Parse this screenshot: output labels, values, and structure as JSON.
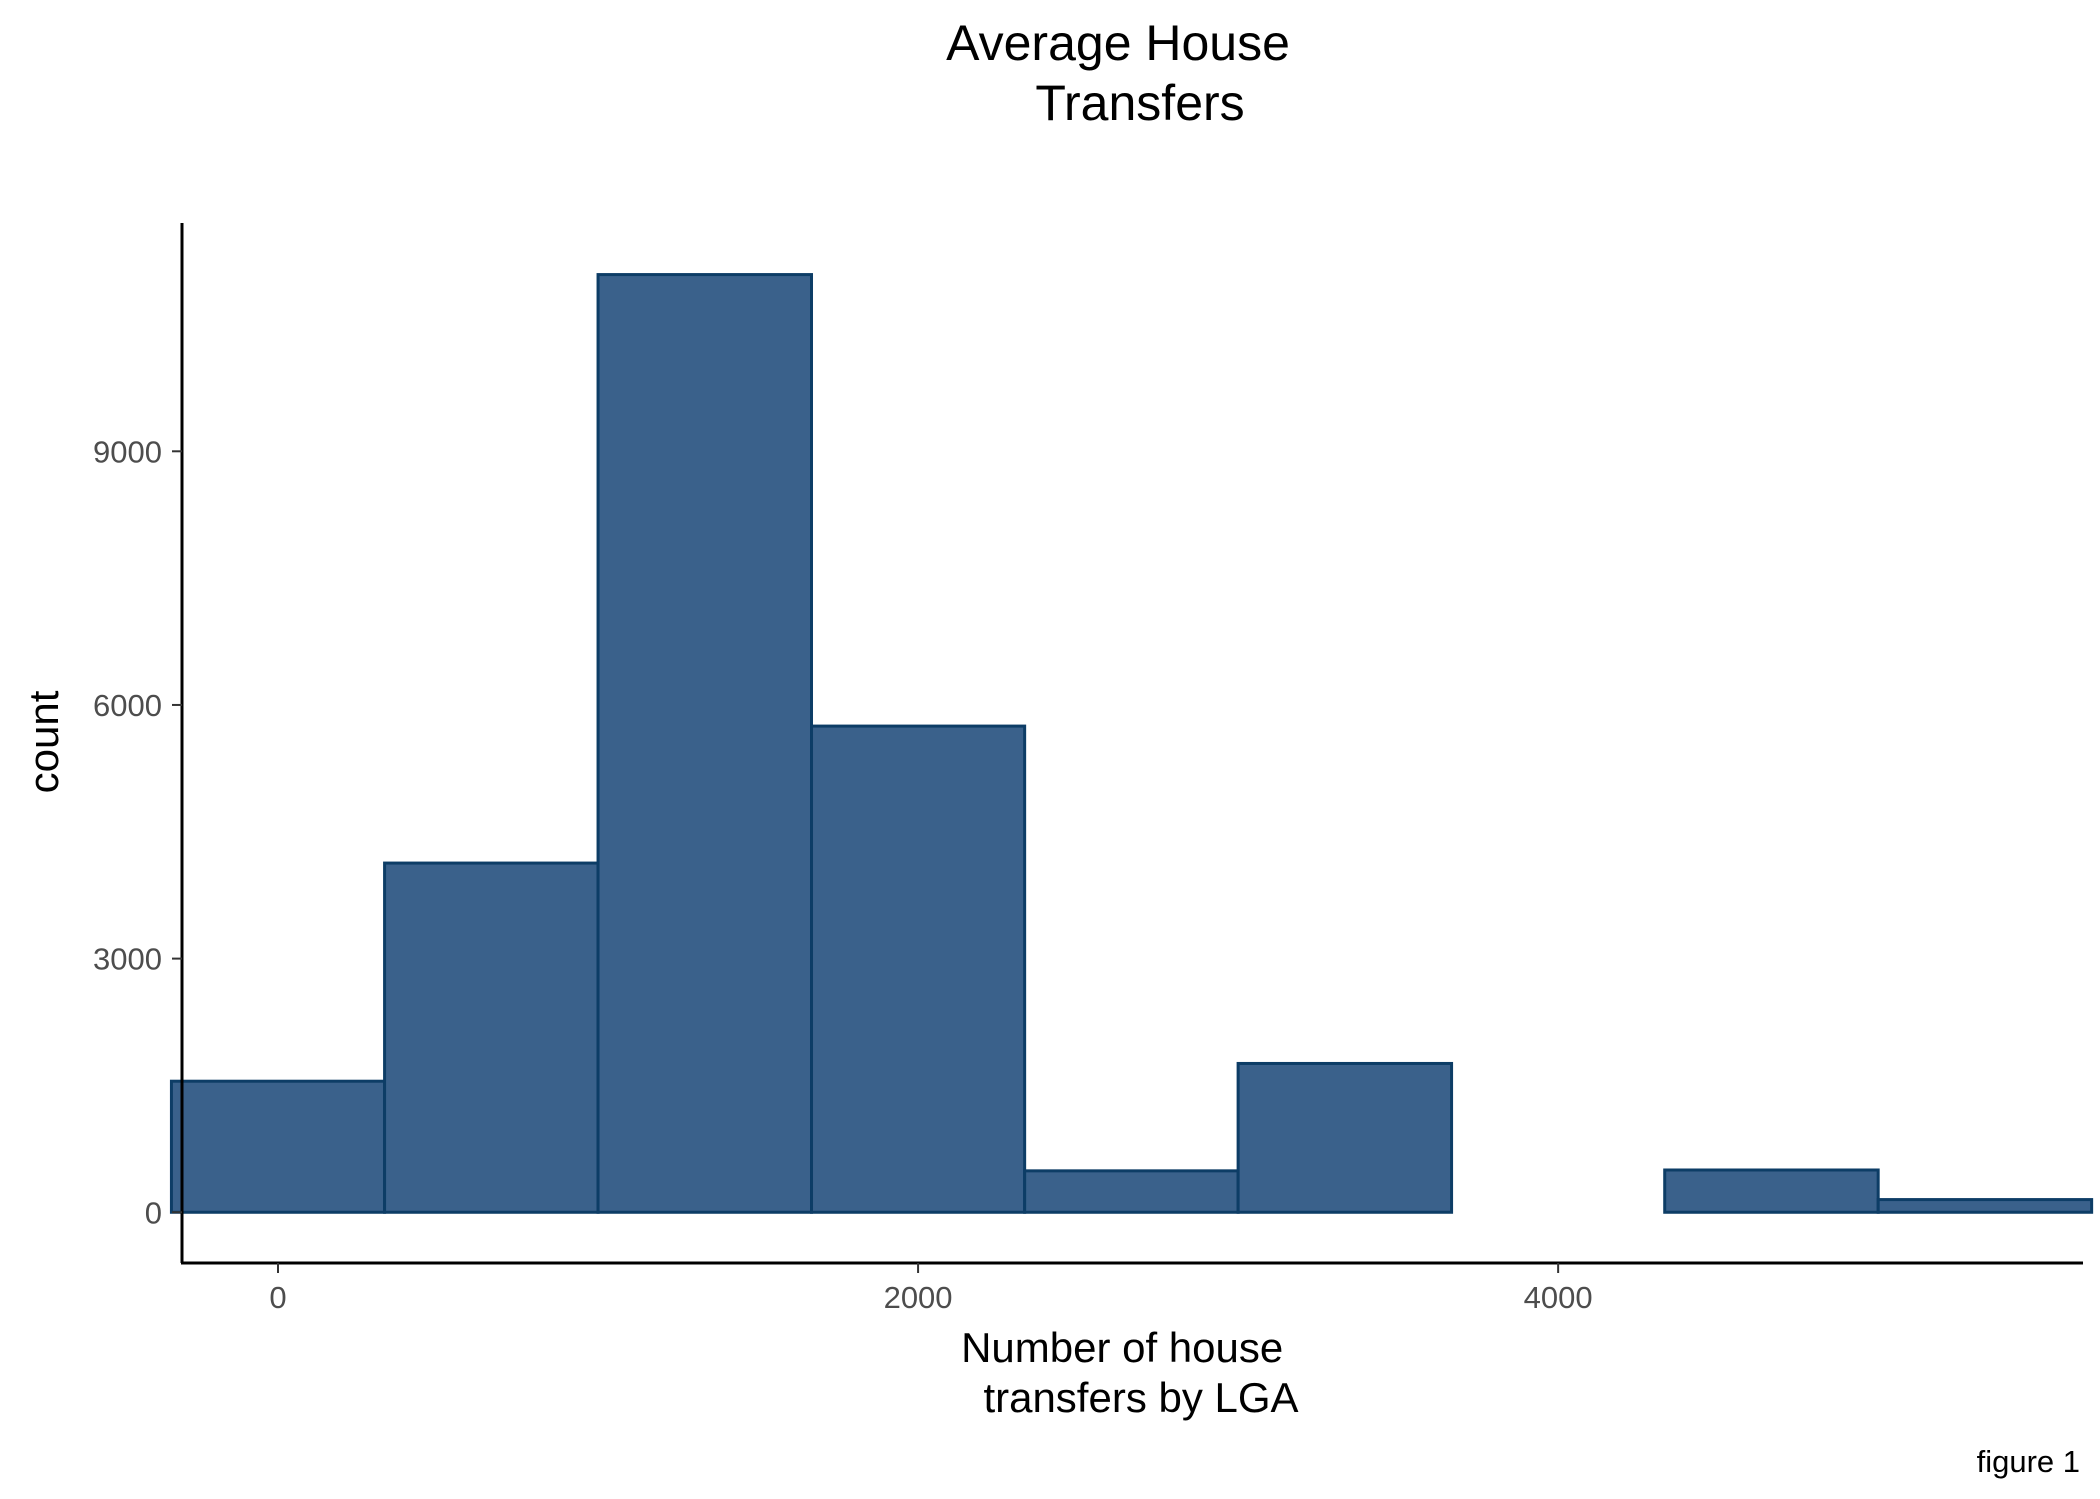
{
  "chart_data": {
    "type": "bar",
    "title_lines": [
      "Average House",
      "Transfers"
    ],
    "xlabel_lines": [
      "Number of house",
      "transfers by LGA"
    ],
    "ylabel": "count",
    "caption": "figure 1",
    "bar_fill": "#3A618B",
    "bar_edge": "#0D3D66",
    "axis_color": "#000000",
    "tick_label_color": "#4D4D4D",
    "grid": false,
    "xlim": [
      -300,
      5640
    ],
    "ylim": [
      -600,
      11700
    ],
    "xticks": [
      0,
      2000,
      4000
    ],
    "xtick_labels": [
      "0",
      "2000",
      "4000"
    ],
    "yticks": [
      0,
      3000,
      6000,
      9000
    ],
    "ytick_labels": [
      "0",
      "3000",
      "6000",
      "9000"
    ],
    "bins": [
      {
        "x0": -333,
        "x1": 333,
        "count": 1550
      },
      {
        "x0": 333,
        "x1": 1000,
        "count": 4130
      },
      {
        "x0": 1000,
        "x1": 1667,
        "count": 11090
      },
      {
        "x0": 1667,
        "x1": 2333,
        "count": 5750
      },
      {
        "x0": 2333,
        "x1": 3000,
        "count": 490
      },
      {
        "x0": 3000,
        "x1": 3667,
        "count": 1760
      },
      {
        "x0": 3667,
        "x1": 4333,
        "count": 0
      },
      {
        "x0": 4333,
        "x1": 5000,
        "count": 500
      },
      {
        "x0": 5000,
        "x1": 5667,
        "count": 150
      }
    ]
  }
}
